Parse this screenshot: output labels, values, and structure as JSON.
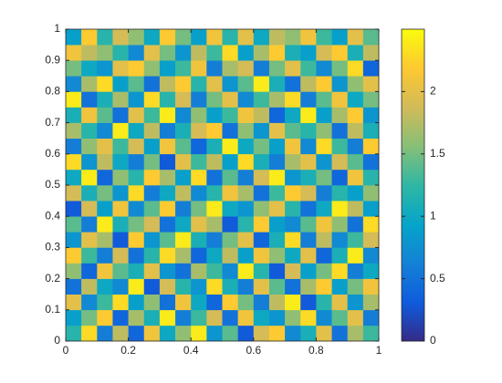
{
  "chart_data": {
    "type": "heatmap",
    "xlim": [
      0,
      1
    ],
    "ylim": [
      0,
      1
    ],
    "xticks": [
      0,
      0.2,
      0.4,
      0.6,
      0.8,
      1
    ],
    "yticks": [
      0,
      0.1,
      0.2,
      0.3,
      0.4,
      0.5,
      0.6,
      0.7,
      0.8,
      0.9,
      1
    ],
    "clim": [
      0,
      2.5
    ],
    "cticks": [
      0,
      0.5,
      1,
      1.5,
      2
    ],
    "colormap": [
      "#352a87",
      "#0f5cdd",
      "#1481d6",
      "#06a4ca",
      "#2eb7a4",
      "#87bf77",
      "#d1bb59",
      "#fec832",
      "#f9fb0e"
    ],
    "z": [
      [
        1.2,
        2.3,
        0.6,
        1.8,
        0.4,
        2.1,
        1.0,
        1.6,
        2.4,
        0.8,
        1.4,
        0.3,
        1.9,
        2.2,
        0.7,
        1.1,
        2.0,
        0.5,
        1.7,
        1.3
      ],
      [
        0.9,
        1.5,
        2.2,
        0.4,
        1.7,
        1.1,
        2.4,
        0.6,
        1.3,
        1.9,
        0.5,
        2.1,
        1.0,
        0.8,
        1.6,
        2.3,
        0.7,
        1.4,
        2.0,
        0.6
      ],
      [
        2.0,
        0.7,
        1.3,
        2.3,
        0.9,
        1.6,
        0.5,
        2.1,
        1.0,
        0.4,
        2.2,
        1.5,
        0.6,
        1.8,
        2.4,
        0.3,
        1.2,
        2.0,
        0.8,
        1.7
      ],
      [
        0.5,
        1.8,
        1.0,
        0.7,
        2.4,
        0.3,
        1.9,
        1.2,
        0.8,
        2.3,
        1.1,
        0.6,
        2.0,
        1.4,
        0.5,
        1.7,
        2.2,
        0.9,
        1.5,
        2.1
      ],
      [
        1.6,
        0.4,
        2.1,
        1.4,
        1.1,
        2.0,
        0.8,
        0.5,
        1.7,
        1.3,
        0.7,
        2.4,
        1.2,
        0.3,
        1.9,
        0.9,
        1.5,
        2.3,
        0.6,
        1.0
      ],
      [
        2.2,
        1.3,
        0.6,
        1.9,
        0.5,
        1.2,
        2.3,
        1.7,
        0.4,
        1.0,
        1.8,
        0.9,
        2.1,
        1.6,
        1.0,
        2.0,
        0.4,
        1.1,
        2.4,
        0.7
      ],
      [
        0.8,
        2.0,
        1.7,
        0.3,
        2.2,
        0.8,
        1.4,
        2.4,
        1.1,
        0.6,
        1.5,
        2.0,
        0.4,
        1.1,
        2.3,
        0.6,
        1.8,
        0.7,
        1.3,
        1.9
      ],
      [
        1.4,
        0.6,
        2.4,
        1.1,
        1.5,
        1.9,
        0.5,
        1.0,
        2.0,
        1.7,
        0.3,
        1.2,
        2.2,
        0.9,
        0.7,
        1.4,
        2.1,
        1.6,
        0.5,
        2.3
      ],
      [
        0.3,
        1.9,
        0.9,
        2.1,
        0.7,
        1.4,
        2.2,
        0.6,
        1.5,
        2.4,
        1.0,
        0.8,
        1.6,
        2.0,
        1.2,
        0.5,
        1.0,
        2.4,
        1.8,
        0.9
      ],
      [
        1.9,
        1.1,
        1.5,
        0.8,
        2.3,
        0.6,
        1.0,
        1.8,
        0.7,
        1.2,
        2.1,
        1.7,
        0.5,
        1.3,
        2.2,
        1.9,
        0.6,
        1.2,
        0.9,
        1.6
      ],
      [
        1.0,
        2.4,
        0.4,
        1.6,
        1.2,
        2.2,
        1.7,
        0.9,
        2.3,
        0.5,
        1.4,
        0.6,
        1.9,
        2.4,
        0.8,
        1.1,
        1.5,
        0.4,
        2.1,
        1.2
      ],
      [
        2.3,
        0.8,
        1.8,
        1.0,
        0.6,
        1.5,
        0.3,
        2.0,
        1.3,
        1.8,
        0.9,
        2.3,
        1.1,
        0.6,
        1.7,
        2.0,
        0.8,
        1.9,
        1.4,
        0.5
      ],
      [
        0.6,
        1.6,
        2.0,
        1.3,
        1.9,
        0.9,
        2.1,
        1.4,
        0.4,
        1.1,
        2.4,
        1.0,
        1.5,
        0.9,
        2.1,
        0.7,
        2.3,
        1.3,
        0.6,
        2.2
      ],
      [
        1.7,
        1.2,
        0.7,
        2.4,
        1.0,
        1.8,
        0.6,
        1.1,
        1.9,
        2.2,
        0.5,
        1.6,
        0.8,
        2.0,
        1.4,
        1.2,
        1.6,
        0.5,
        1.8,
        1.1
      ],
      [
        1.1,
        2.1,
        1.4,
        0.5,
        2.0,
        1.3,
        2.4,
        0.7,
        1.6,
        0.9,
        1.3,
        2.1,
        1.8,
        0.4,
        1.0,
        2.4,
        0.9,
        1.7,
        2.2,
        0.8
      ],
      [
        2.4,
        0.5,
        1.1,
        1.7,
        0.8,
        2.3,
        1.2,
        1.9,
        0.6,
        1.5,
        2.0,
        0.7,
        1.3,
        1.7,
        2.3,
        0.6,
        1.4,
        2.1,
        1.0,
        1.5
      ],
      [
        0.7,
        1.7,
        2.3,
        0.9,
        1.4,
        0.5,
        1.8,
        2.2,
        1.2,
        2.0,
        0.8,
        1.4,
        2.4,
        1.1,
        0.5,
        1.8,
        2.2,
        0.8,
        1.6,
        2.0
      ],
      [
        1.5,
        1.0,
        0.8,
        2.0,
        2.2,
        1.6,
        0.9,
        1.3,
        2.1,
        0.6,
        1.7,
        1.9,
        0.6,
        1.5,
        2.0,
        1.3,
        0.7,
        1.5,
        2.3,
        0.4
      ],
      [
        2.1,
        1.8,
        1.6,
        1.2,
        0.7,
        2.0,
        1.5,
        0.8,
        1.8,
        1.3,
        2.3,
        0.9,
        1.7,
        2.2,
        1.1,
        0.9,
        1.9,
        2.2,
        1.1,
        1.8
      ],
      [
        0.9,
        2.2,
        1.2,
        1.9,
        1.6,
        1.0,
        2.2,
        1.5,
        0.9,
        2.1,
        1.2,
        2.0,
        1.0,
        1.8,
        1.6,
        2.1,
        1.3,
        0.9,
        2.0,
        1.4
      ]
    ]
  }
}
